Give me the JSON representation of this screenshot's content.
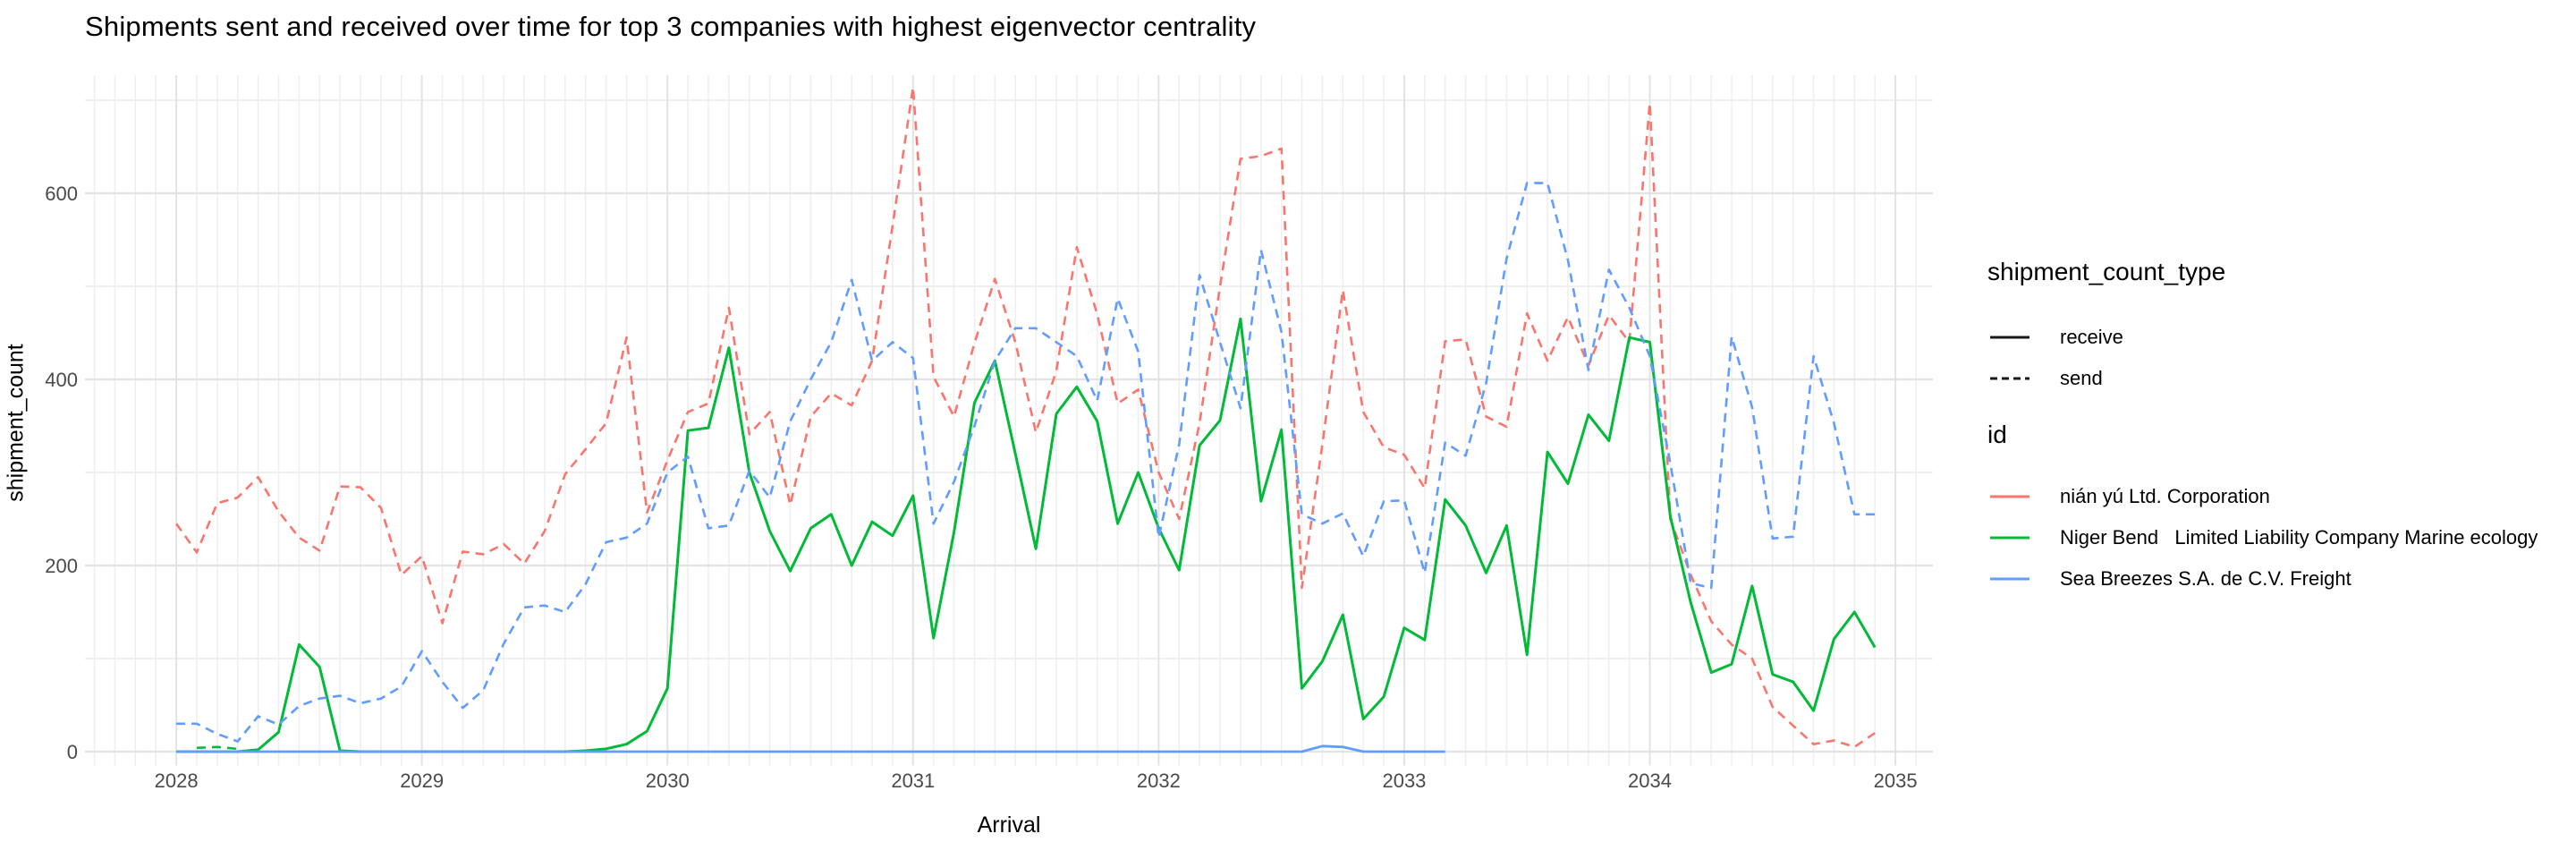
{
  "title": "Shipments sent and received over time for top 3 companies with highest eigenvector centrality",
  "axes": {
    "x_label": "Arrival",
    "y_label": "shipment_count",
    "x_ticks": [
      2028,
      2029,
      2030,
      2031,
      2032,
      2033,
      2034,
      2035
    ],
    "y_ticks": [
      0,
      200,
      400,
      600
    ]
  },
  "legend": {
    "type_title": "shipment_count_type",
    "receive_label": "receive",
    "send_label": "send",
    "id_title": "id",
    "id_items": [
      {
        "label": "nián yú Ltd. Corporation",
        "color": "#F8766D"
      },
      {
        "label": "Niger Bend   Limited Liability Company Marine ecology",
        "color": "#00BA38"
      },
      {
        "label": "Sea Breezes S.A. de C.V. Freight",
        "color": "#619CFF"
      }
    ]
  },
  "colors": {
    "red": "#F8766D",
    "green": "#00BA38",
    "blue": "#619CFF",
    "tick_text": "#4a4a4a",
    "grid_major": "#e3e3e3",
    "grid_minor": "#efefef",
    "legend_key": "#1a1a1a"
  },
  "chart_data": {
    "type": "line",
    "title": "Shipments sent and received over time for top 3 companies with highest eigenvector centrality",
    "xlabel": "Arrival",
    "ylabel": "shipment_count",
    "x_start": 2028.0,
    "x_step_months": 1,
    "xlim": [
      2027.6,
      2035.15
    ],
    "ylim": [
      -15,
      727
    ],
    "grid": "major+minor, monthly minor vertical",
    "legend_position": "right",
    "series": [
      {
        "id": "nián yú Ltd. Corporation",
        "shipment_count_type": "send",
        "color": "#F8766D",
        "dashed": true,
        "width": 2.6,
        "values": [
          245,
          214,
          267,
          273,
          295,
          258,
          230,
          216,
          285,
          284,
          262,
          190,
          210,
          138,
          215,
          212,
          223,
          202,
          237,
          298,
          325,
          353,
          445,
          257,
          313,
          365,
          374,
          477,
          341,
          365,
          265,
          360,
          385,
          372,
          420,
          565,
          714,
          403,
          360,
          439,
          508,
          440,
          343,
          409,
          542,
          470,
          374,
          389,
          300,
          250,
          353,
          500,
          637,
          640,
          648,
          176,
          330,
          496,
          365,
          327,
          319,
          283,
          441,
          443,
          360,
          349,
          471,
          420,
          467,
          415,
          469,
          440,
          697,
          250,
          190,
          140,
          115,
          100,
          48,
          28,
          8,
          12,
          5,
          20
        ]
      },
      {
        "id": "Niger Bend   Limited Liability Company Marine ecology",
        "shipment_count_type": "send",
        "color": "#00BA38",
        "dashed": true,
        "width": 2.6,
        "values": [
          null,
          4,
          5,
          3,
          null,
          null,
          null,
          null,
          null,
          null,
          null,
          null,
          null,
          null,
          null,
          null,
          null,
          null,
          null,
          null,
          null,
          null,
          null,
          null,
          null,
          null,
          null,
          null,
          null,
          null,
          null,
          null,
          null,
          null,
          null,
          null,
          null,
          null,
          null,
          null,
          null,
          null,
          null,
          null,
          null,
          null,
          null,
          null,
          null,
          null,
          null,
          null,
          null,
          null,
          null,
          null,
          null,
          null,
          null,
          null,
          null,
          null,
          null,
          null,
          null,
          null,
          null,
          null,
          null,
          null,
          null,
          null,
          null,
          null,
          null,
          null,
          null,
          null,
          null,
          null,
          null,
          null,
          null,
          null
        ]
      },
      {
        "id": "Niger Bend   Limited Liability Company Marine ecology",
        "shipment_count_type": "receive",
        "color": "#00BA38",
        "dashed": false,
        "width": 3,
        "values": [
          0,
          0,
          0,
          0,
          2,
          21,
          115,
          91,
          1,
          0,
          0,
          0,
          0,
          0,
          0,
          0,
          0,
          0,
          0,
          0,
          1,
          3,
          8,
          22,
          68,
          345,
          348,
          434,
          300,
          237,
          194,
          240,
          255,
          200,
          247,
          232,
          275,
          122,
          236,
          375,
          420,
          320,
          218,
          363,
          392,
          355,
          245,
          300,
          240,
          195,
          329,
          356,
          465,
          269,
          346,
          68,
          97,
          147,
          35,
          59,
          133,
          120,
          271,
          243,
          192,
          243,
          104,
          322,
          288,
          362,
          334,
          445,
          440,
          253,
          160,
          85,
          94,
          178,
          83,
          75,
          44,
          121,
          150,
          112
        ]
      },
      {
        "id": "Sea Breezes S.A. de C.V. Freight",
        "shipment_count_type": "receive",
        "color": "#619CFF",
        "dashed": false,
        "width": 2.8,
        "values": [
          0,
          0,
          0,
          0,
          0,
          0,
          0,
          0,
          0,
          0,
          0,
          0,
          0,
          0,
          0,
          0,
          0,
          0,
          0,
          0,
          0,
          0,
          0,
          0,
          0,
          0,
          0,
          0,
          0,
          0,
          0,
          0,
          0,
          0,
          0,
          0,
          0,
          0,
          0,
          0,
          0,
          0,
          0,
          0,
          0,
          0,
          0,
          0,
          0,
          0,
          0,
          0,
          0,
          0,
          0,
          0,
          6,
          5,
          0,
          0,
          0,
          0,
          0,
          null,
          null,
          null,
          null,
          null,
          null,
          null,
          null,
          null,
          null,
          null,
          null,
          null,
          null,
          null,
          null,
          null,
          null,
          null,
          null,
          null
        ]
      },
      {
        "id": "Sea Breezes S.A. de C.V. Freight",
        "shipment_count_type": "send",
        "color": "#619CFF",
        "dashed": true,
        "width": 2.6,
        "values": [
          30,
          30,
          19,
          11,
          38,
          29,
          49,
          57,
          60,
          52,
          57,
          70,
          108,
          75,
          47,
          66,
          116,
          155,
          157,
          150,
          180,
          225,
          230,
          245,
          300,
          317,
          240,
          243,
          302,
          273,
          355,
          400,
          440,
          507,
          420,
          440,
          423,
          245,
          290,
          350,
          420,
          455,
          455,
          440,
          425,
          377,
          487,
          430,
          230,
          330,
          512,
          440,
          369,
          539,
          451,
          255,
          245,
          256,
          210,
          269,
          270,
          192,
          332,
          318,
          396,
          530,
          611,
          611,
          528,
          410,
          518,
          477,
          425,
          310,
          181,
          176,
          446,
          370,
          229,
          231,
          425,
          353,
          255,
          255
        ]
      }
    ]
  }
}
